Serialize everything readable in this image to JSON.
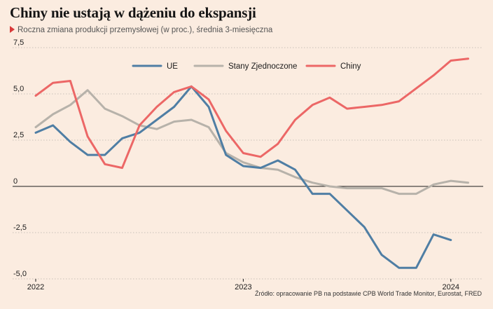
{
  "chart_data": {
    "type": "line",
    "title": "Chiny nie ustają w dążeniu do ekspansji",
    "subtitle": "Roczna zmiana produkcji przemysłowej (w proc.), średnia 3-miesięczna",
    "source": "Źródło: opracowanie PB na podstawie CPB World Trade Monitor, Eurostat, FRED",
    "ylim": [
      -5,
      7.5
    ],
    "yticks": [
      "7,5",
      "5,0",
      "2,5",
      "0",
      "-2,5",
      "-5,0"
    ],
    "ytick_values": [
      7.5,
      5.0,
      2.5,
      0,
      -2.5,
      -5.0
    ],
    "xtick_labels": [
      "2022",
      "2023",
      "2024"
    ],
    "xtick_months": [
      0,
      12,
      24
    ],
    "x_months": [
      0,
      1,
      2,
      3,
      4,
      5,
      6,
      7,
      8,
      9,
      10,
      11,
      12,
      13,
      14,
      15,
      16,
      17,
      18,
      19,
      20,
      21,
      22,
      23,
      24,
      25
    ],
    "grid": "horizontal dotted",
    "legend_position": "top-center",
    "colors": {
      "UE": "#4f7ea4",
      "Stany Zjednoczone": "#b7b2aa",
      "Chiny": "#ec6766"
    },
    "series": [
      {
        "name": "UE",
        "values": [
          2.9,
          3.3,
          2.4,
          1.7,
          1.7,
          2.6,
          2.9,
          3.6,
          4.3,
          5.4,
          4.3,
          1.7,
          1.1,
          1.0,
          1.4,
          0.9,
          -0.4,
          -0.4,
          -1.3,
          -2.2,
          -3.7,
          -4.4,
          -4.4,
          -2.6,
          -2.9,
          null
        ]
      },
      {
        "name": "Stany Zjednoczone",
        "values": [
          3.2,
          3.9,
          4.4,
          5.2,
          4.2,
          3.8,
          3.3,
          3.1,
          3.5,
          3.6,
          3.2,
          1.8,
          1.3,
          1.0,
          0.9,
          0.5,
          0.2,
          0.0,
          -0.1,
          -0.1,
          -0.1,
          -0.4,
          -0.4,
          0.1,
          0.3,
          0.2
        ]
      },
      {
        "name": "Chiny",
        "values": [
          4.9,
          5.6,
          5.7,
          2.7,
          1.2,
          1.0,
          3.3,
          4.3,
          5.1,
          5.4,
          4.7,
          3.0,
          1.8,
          1.6,
          2.3,
          3.6,
          4.4,
          4.8,
          4.2,
          4.3,
          4.4,
          4.6,
          5.3,
          6.0,
          6.8,
          6.9
        ]
      }
    ]
  }
}
